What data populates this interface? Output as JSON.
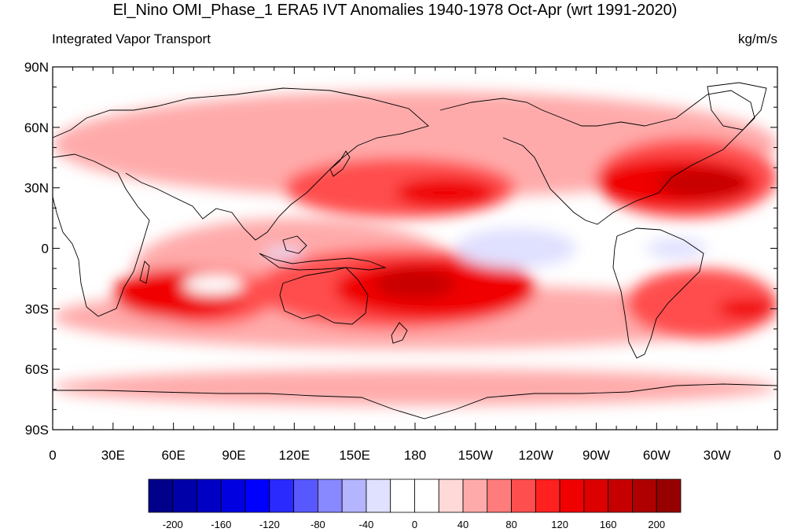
{
  "title": "El_Nino OMI_Phase_1 ERA5 IVT Anomalies 1940-1978 Oct-Apr (wrt 1991-2020)",
  "subtitle": "Integrated Vapor Transport",
  "units": "kg/m/s",
  "map": {
    "projection": "cylindrical-equidistant",
    "lon_range": [
      0,
      360
    ],
    "lat_range": [
      -90,
      90
    ],
    "lat_ticks": [
      {
        "lat": 90,
        "label": "90N"
      },
      {
        "lat": 60,
        "label": "60N"
      },
      {
        "lat": 30,
        "label": "30N"
      },
      {
        "lat": 0,
        "label": "0"
      },
      {
        "lat": -30,
        "label": "30S"
      },
      {
        "lat": -60,
        "label": "60S"
      },
      {
        "lat": -90,
        "label": "90S"
      }
    ],
    "lon_ticks": [
      {
        "lon": 0,
        "label": "0"
      },
      {
        "lon": 30,
        "label": "30E"
      },
      {
        "lon": 60,
        "label": "60E"
      },
      {
        "lon": 90,
        "label": "90E"
      },
      {
        "lon": 120,
        "label": "120E"
      },
      {
        "lon": 150,
        "label": "150E"
      },
      {
        "lon": 180,
        "label": "180"
      },
      {
        "lon": 210,
        "label": "150W"
      },
      {
        "lon": 240,
        "label": "120W"
      },
      {
        "lon": 270,
        "label": "90W"
      },
      {
        "lon": 300,
        "label": "60W"
      },
      {
        "lon": 330,
        "label": "30W"
      },
      {
        "lon": 360,
        "label": "0"
      }
    ],
    "anomaly_regions": [
      {
        "level": 40,
        "lon": [
          0,
          360
        ],
        "lat": [
          -50,
          -18
        ]
      },
      {
        "level": 40,
        "lon": [
          0,
          360
        ],
        "lat": [
          -78,
          -60
        ]
      },
      {
        "level": 40,
        "lon": [
          0,
          360
        ],
        "lat": [
          25,
          78
        ]
      },
      {
        "level": 40,
        "lon": [
          40,
          200
        ],
        "lat": [
          -35,
          15
        ]
      },
      {
        "level": 80,
        "lon": [
          45,
          110
        ],
        "lat": [
          -38,
          -10
        ]
      },
      {
        "level": 80,
        "lon": [
          100,
          240
        ],
        "lat": [
          -40,
          0
        ]
      },
      {
        "level": 80,
        "lon": [
          115,
          230
        ],
        "lat": [
          15,
          45
        ]
      },
      {
        "level": 80,
        "lon": [
          270,
          360
        ],
        "lat": [
          15,
          55
        ]
      },
      {
        "level": 80,
        "lon": [
          285,
          360
        ],
        "lat": [
          -45,
          -10
        ]
      },
      {
        "level": 120,
        "lon": [
          30,
          95
        ],
        "lat": [
          -35,
          -10
        ]
      },
      {
        "level": 120,
        "lon": [
          140,
          240
        ],
        "lat": [
          -35,
          -5
        ]
      },
      {
        "level": 120,
        "lon": [
          170,
          220
        ],
        "lat": [
          20,
          35
        ]
      },
      {
        "level": 120,
        "lon": [
          270,
          350
        ],
        "lat": [
          20,
          45
        ]
      },
      {
        "level": 120,
        "lon": [
          330,
          360
        ],
        "lat": [
          -35,
          -25
        ]
      },
      {
        "level": 160,
        "lon": [
          160,
          200
        ],
        "lat": [
          -25,
          -10
        ]
      },
      {
        "level": 160,
        "lon": [
          300,
          345
        ],
        "lat": [
          25,
          40
        ]
      },
      {
        "level": -40,
        "lon": [
          200,
          260
        ],
        "lat": [
          -10,
          10
        ]
      },
      {
        "level": -40,
        "lon": [
          295,
          325
        ],
        "lat": [
          -5,
          5
        ]
      },
      {
        "level": -40,
        "lon": [
          105,
          125
        ],
        "lat": [
          -5,
          0
        ]
      },
      {
        "level": 0,
        "lon": [
          65,
          95
        ],
        "lat": [
          -23,
          -13
        ]
      }
    ]
  },
  "colorbar": {
    "levels": [
      -220,
      -200,
      -180,
      -160,
      -140,
      -120,
      -100,
      -80,
      -60,
      -40,
      -20,
      0,
      20,
      40,
      60,
      80,
      100,
      120,
      140,
      160,
      180,
      200,
      220
    ],
    "colors": [
      "#00008a",
      "#0000a8",
      "#0000c4",
      "#0000e0",
      "#0000ff",
      "#2a2aff",
      "#5858ff",
      "#8888ff",
      "#b4b4ff",
      "#e0e0ff",
      "#ffffff",
      "#ffffff",
      "#ffd8d8",
      "#ffaaaa",
      "#ff7c7c",
      "#ff4e4e",
      "#ff2020",
      "#f00000",
      "#dc0000",
      "#c60000",
      "#ae0000",
      "#960000"
    ],
    "labels": [
      {
        "value": -200,
        "label": "-200"
      },
      {
        "value": -160,
        "label": "-160"
      },
      {
        "value": -120,
        "label": "-120"
      },
      {
        "value": -80,
        "label": "-80"
      },
      {
        "value": -40,
        "label": "-40"
      },
      {
        "value": 0,
        "label": "0"
      },
      {
        "value": 40,
        "label": "40"
      },
      {
        "value": 80,
        "label": "80"
      },
      {
        "value": 120,
        "label": "120"
      },
      {
        "value": 160,
        "label": "160"
      },
      {
        "value": 200,
        "label": "200"
      }
    ]
  }
}
